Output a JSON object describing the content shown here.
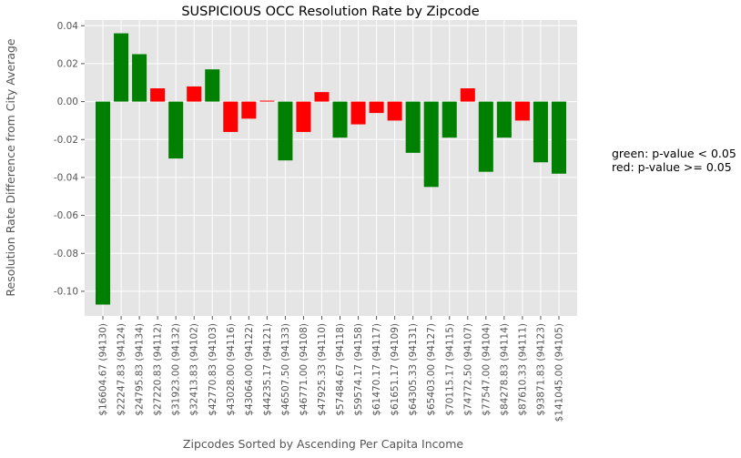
{
  "chart_data": {
    "type": "bar",
    "title": "SUSPICIOUS OCC Resolution Rate by Zipcode",
    "xlabel": "Zipcodes Sorted by Ascending Per Capita Income",
    "ylabel": "Resolution Rate Difference from City Average",
    "ylim": [
      -0.113,
      0.043
    ],
    "yticks": [
      "0.04",
      "0.02",
      "0.00",
      "-0.02",
      "-0.04",
      "-0.06",
      "-0.08",
      "-0.10"
    ],
    "ytick_values": [
      0.04,
      0.02,
      0.0,
      -0.02,
      -0.04,
      -0.06,
      -0.08,
      -0.1
    ],
    "grid": true,
    "categories": [
      "$16604.67 (94130)",
      "$22247.83 (94124)",
      "$24795.83 (94134)",
      "$27220.83 (94112)",
      "$31923.00 (94132)",
      "$32413.83 (94102)",
      "$42770.83 (94103)",
      "$43028.00 (94116)",
      "$43064.00 (94122)",
      "$44235.17 (94121)",
      "$46507.50 (94133)",
      "$46771.00 (94108)",
      "$47925.33 (94110)",
      "$57484.67 (94118)",
      "$59574.17 (94158)",
      "$61470.17 (94117)",
      "$61651.17 (94109)",
      "$64305.33 (94131)",
      "$65403.00 (94127)",
      "$70115.17 (94115)",
      "$74772.50 (94107)",
      "$77547.00 (94104)",
      "$84278.83 (94114)",
      "$87610.33 (94111)",
      "$93871.83 (94123)",
      "$141045.00 (94105)"
    ],
    "values": [
      -0.107,
      0.036,
      0.025,
      0.007,
      -0.03,
      0.008,
      0.017,
      -0.016,
      -0.009,
      0.0005,
      -0.031,
      -0.016,
      0.005,
      -0.019,
      -0.012,
      -0.006,
      -0.01,
      -0.027,
      -0.045,
      -0.019,
      0.007,
      -0.037,
      -0.019,
      -0.01,
      -0.032,
      -0.038
    ],
    "colors": [
      "green",
      "green",
      "green",
      "red",
      "green",
      "red",
      "green",
      "red",
      "red",
      "red",
      "green",
      "red",
      "red",
      "green",
      "red",
      "red",
      "red",
      "green",
      "green",
      "green",
      "red",
      "green",
      "green",
      "red",
      "green",
      "green"
    ],
    "palette": {
      "green": "#008000",
      "red": "#ff0000",
      "plot_bg": "#e5e5e5",
      "grid": "#ffffff"
    },
    "annotations": [
      "green: p-value < 0.05",
      "red: p-value >= 0.05"
    ]
  }
}
